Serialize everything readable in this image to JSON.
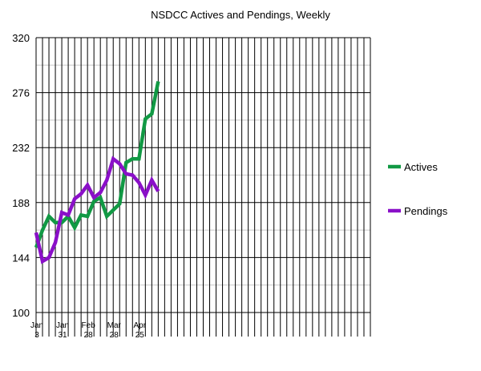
{
  "chart_data": {
    "type": "line",
    "title": "NSDCC Actives and Pendings, Weekly",
    "xlabel": "",
    "ylabel": "",
    "ylim": [
      100,
      320
    ],
    "yticks": [
      100,
      144,
      188,
      232,
      276,
      320
    ],
    "grid": true,
    "legend_position": "right",
    "x_labels": [
      {
        "week": 0,
        "lines": [
          "Jan",
          "3"
        ]
      },
      {
        "week": 4,
        "lines": [
          "Jan",
          "31"
        ]
      },
      {
        "week": 8,
        "lines": [
          "Feb",
          "28"
        ]
      },
      {
        "week": 12,
        "lines": [
          "Mar",
          "28"
        ]
      },
      {
        "week": 16,
        "lines": [
          "Apr",
          "25"
        ]
      }
    ],
    "weeks_total": 52,
    "series": [
      {
        "name": "Actives",
        "color": "#119944",
        "values": [
          152,
          166,
          177,
          172,
          172,
          177,
          168,
          178,
          177,
          189,
          192,
          177,
          182,
          187,
          220,
          223,
          223,
          255,
          259,
          285
        ]
      },
      {
        "name": "Pendings",
        "color": "#8a10c8",
        "values": [
          164,
          141,
          144,
          156,
          180,
          178,
          191,
          195,
          202,
          192,
          196,
          206,
          223,
          219,
          211,
          210,
          204,
          194,
          206,
          197
        ]
      }
    ]
  }
}
